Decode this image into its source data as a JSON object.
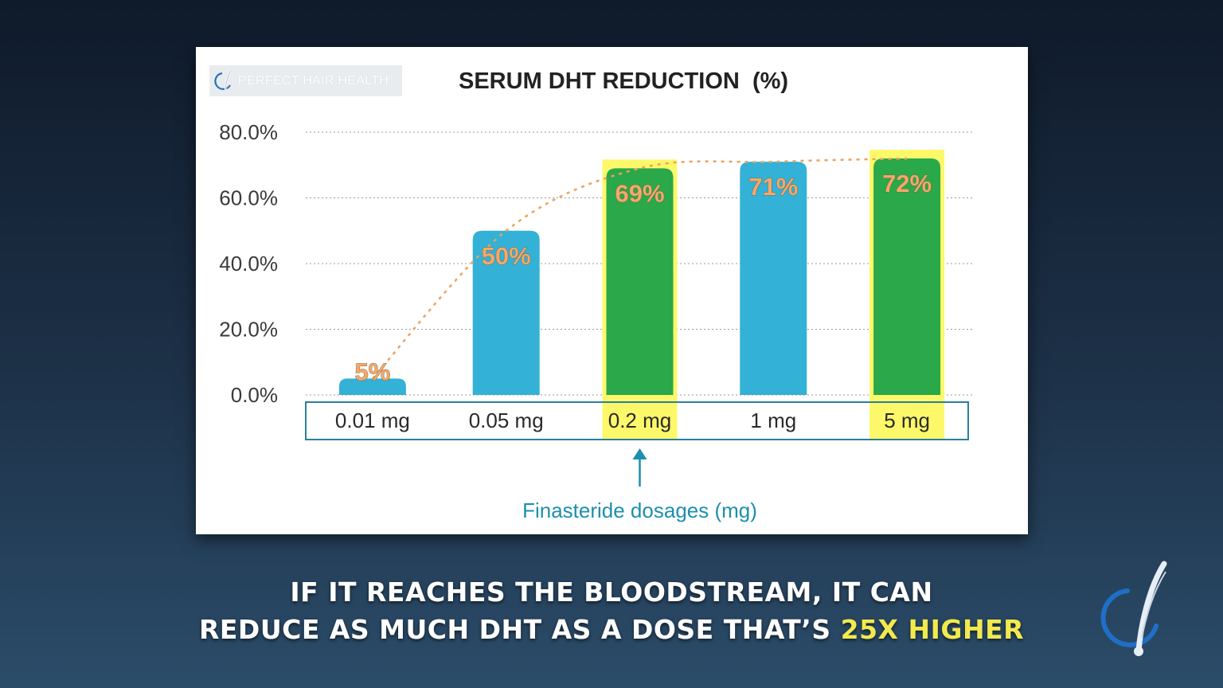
{
  "slide": {
    "logo_text": "PERFECT HAIR HEALTH",
    "title": "SERUM DHT REDUCTION  (%)",
    "arrow_label": "Finasteride dosages (mg)"
  },
  "chart_data": {
    "type": "bar",
    "title": "SERUM DHT REDUCTION  (%)",
    "xlabel": "Finasteride dosages (mg)",
    "ylabel": "",
    "categories": [
      "0.01 mg",
      "0.05 mg",
      "0.2 mg",
      "1 mg",
      "5 mg"
    ],
    "values": [
      5,
      50,
      69,
      71,
      72
    ],
    "data_labels": [
      "5%",
      "50%",
      "69%",
      "71%",
      "72%"
    ],
    "bar_colors": [
      "#33b1d6",
      "#33b1d6",
      "#2aa84a",
      "#33b1d6",
      "#2aa84a"
    ],
    "highlighted": [
      false,
      false,
      true,
      false,
      true
    ],
    "highlight_color": "#fdf86a",
    "ylim": [
      0,
      80
    ],
    "yticks": [
      "0.0%",
      "20.0%",
      "40.0%",
      "60.0%",
      "80.0%"
    ],
    "ytick_values": [
      0,
      20,
      40,
      60,
      80
    ],
    "grid": true,
    "trend_line": {
      "style": "dashed",
      "color": "#f0a15c"
    },
    "arrow_target": "0.2 mg",
    "arrow_color": "#1d8fae",
    "label_color": "#f2a96a"
  },
  "caption": {
    "line1": "IF IT REACHES THE BLOODSTREAM, IT CAN",
    "line2_prefix": "REDUCE AS MUCH DHT AS A DOSE THAT’S ",
    "line2_highlight": "25X HIGHER"
  },
  "colors": {
    "highlight_text": "#f2e94e",
    "brand_blue": "#1f6fc7"
  },
  "icons": {
    "watermark": "perfect-hair-health-logo-icon"
  }
}
